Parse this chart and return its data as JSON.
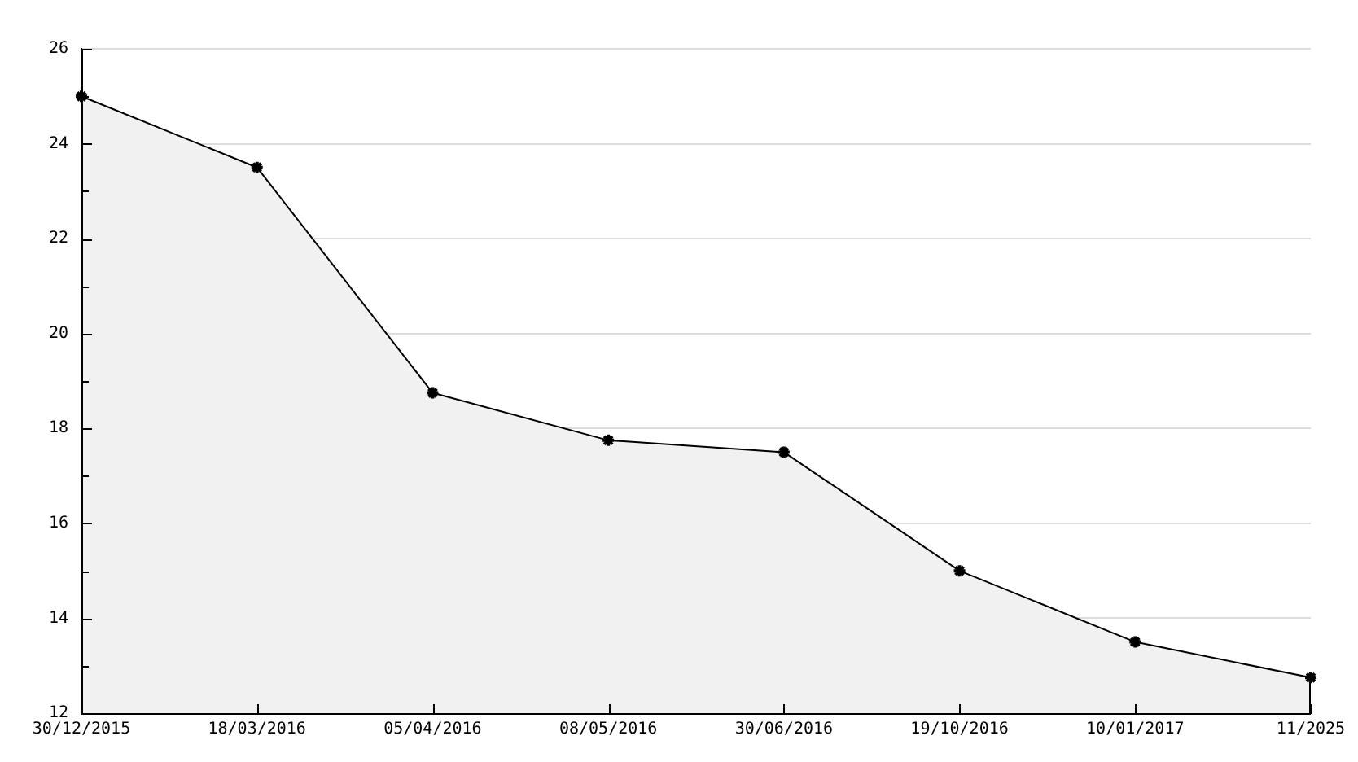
{
  "chart_data": {
    "type": "area",
    "categories": [
      "30/12/2015",
      "18/03/2016",
      "05/04/2016",
      "08/05/2016",
      "30/06/2016",
      "19/10/2016",
      "10/01/2017",
      "11/2025"
    ],
    "values": [
      25,
      23.5,
      18.75,
      17.75,
      17.5,
      15,
      13.5,
      12.75
    ],
    "color": "#f1f1f1",
    "ylim": [
      12,
      26
    ],
    "yticks": [
      12,
      {
        "value": 13,
        "label": null
      },
      14,
      {
        "value": 15,
        "label": null
      },
      16,
      {
        "value": 17,
        "label": null
      },
      18,
      {
        "value": 19,
        "label": null
      },
      20,
      {
        "value": 21,
        "label": null
      },
      22,
      {
        "value": 23,
        "label": null
      },
      24,
      {
        "value": 25,
        "label": null
      },
      26
    ],
    "grid": "y",
    "marker": "cross",
    "line_style": "solid"
  }
}
